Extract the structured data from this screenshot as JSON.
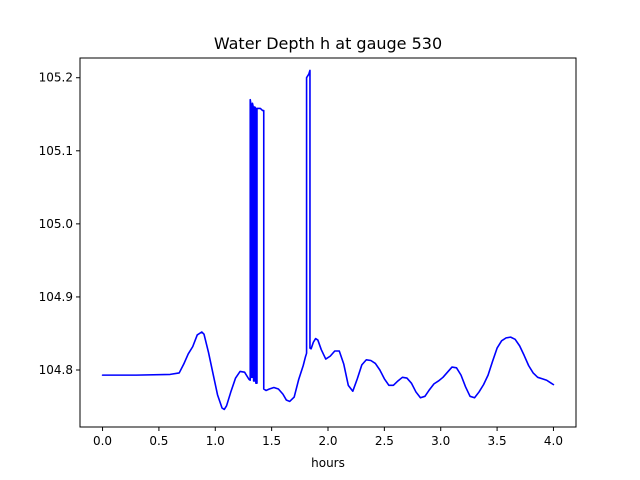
{
  "chart_data": {
    "type": "line",
    "title": "Water Depth h at gauge 530",
    "xlabel": "hours",
    "ylabel": "",
    "xlim": [
      -0.2,
      4.2
    ],
    "ylim": [
      104.722,
      105.227
    ],
    "xticks": [
      0.0,
      0.5,
      1.0,
      1.5,
      2.0,
      2.5,
      3.0,
      3.5,
      4.0
    ],
    "xtick_labels": [
      "0.0",
      "0.5",
      "1.0",
      "1.5",
      "2.0",
      "2.5",
      "3.0",
      "3.5",
      "4.0"
    ],
    "yticks": [
      104.8,
      104.9,
      105.0,
      105.1,
      105.2
    ],
    "ytick_labels": [
      "104.8",
      "104.9",
      "105.0",
      "105.1",
      "105.2"
    ],
    "grid": false,
    "series": [
      {
        "color": "#0000ff",
        "x": [
          0.0,
          0.3,
          0.6,
          0.68,
          0.72,
          0.76,
          0.8,
          0.84,
          0.88,
          0.9,
          0.94,
          0.98,
          1.02,
          1.06,
          1.08,
          1.1,
          1.14,
          1.18,
          1.22,
          1.26,
          1.3,
          1.31,
          1.31,
          1.32,
          1.32,
          1.33,
          1.33,
          1.34,
          1.34,
          1.35,
          1.35,
          1.36,
          1.36,
          1.37,
          1.37,
          1.38,
          1.4,
          1.42,
          1.43,
          1.43,
          1.45,
          1.48,
          1.52,
          1.56,
          1.6,
          1.63,
          1.66,
          1.7,
          1.74,
          1.78,
          1.8,
          1.81,
          1.81,
          1.83,
          1.84,
          1.84,
          1.85,
          1.85,
          1.87,
          1.89,
          1.91,
          1.94,
          1.98,
          2.02,
          2.06,
          2.1,
          2.14,
          2.18,
          2.22,
          2.26,
          2.3,
          2.34,
          2.38,
          2.42,
          2.46,
          2.5,
          2.54,
          2.58,
          2.62,
          2.66,
          2.7,
          2.74,
          2.78,
          2.82,
          2.86,
          2.9,
          2.94,
          2.98,
          3.02,
          3.06,
          3.1,
          3.14,
          3.18,
          3.22,
          3.26,
          3.3,
          3.34,
          3.38,
          3.42,
          3.46,
          3.5,
          3.54,
          3.58,
          3.62,
          3.66,
          3.7,
          3.74,
          3.78,
          3.82,
          3.86,
          3.9,
          3.94,
          3.98,
          4.0
        ],
        "y": [
          104.793,
          104.793,
          104.794,
          104.796,
          104.808,
          104.822,
          104.832,
          104.848,
          104.852,
          104.849,
          104.824,
          104.795,
          104.766,
          104.748,
          104.746,
          104.751,
          104.771,
          104.789,
          104.798,
          104.797,
          104.787,
          104.786,
          105.17,
          105.16,
          104.79,
          104.79,
          105.165,
          105.158,
          104.785,
          104.785,
          105.16,
          105.158,
          104.782,
          104.782,
          105.158,
          105.158,
          105.158,
          105.155,
          105.155,
          104.774,
          104.772,
          104.774,
          104.776,
          104.774,
          104.767,
          104.759,
          104.757,
          104.763,
          104.787,
          104.806,
          104.818,
          104.823,
          105.2,
          105.205,
          105.21,
          104.83,
          104.829,
          104.829,
          104.838,
          104.843,
          104.841,
          104.828,
          104.815,
          104.819,
          104.826,
          104.826,
          104.808,
          104.779,
          104.771,
          104.788,
          104.807,
          104.814,
          104.813,
          104.809,
          104.8,
          104.788,
          104.779,
          104.779,
          104.785,
          104.79,
          104.789,
          104.782,
          104.77,
          104.762,
          104.764,
          104.773,
          104.781,
          104.785,
          104.79,
          104.797,
          104.804,
          104.803,
          104.793,
          104.777,
          104.764,
          104.762,
          104.77,
          104.78,
          104.793,
          104.812,
          104.83,
          104.84,
          104.844,
          104.845,
          104.842,
          104.833,
          104.82,
          104.806,
          104.796,
          104.79,
          104.788,
          104.786,
          104.782,
          104.78
        ]
      }
    ]
  }
}
